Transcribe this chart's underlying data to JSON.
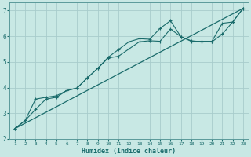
{
  "xlabel": "Humidex (Indice chaleur)",
  "bg_color": "#c8e8e4",
  "grid_color": "#a8cccc",
  "line_color": "#1a6b6b",
  "xlim": [
    0.5,
    23.5
  ],
  "ylim": [
    2.0,
    7.3
  ],
  "xticks": [
    1,
    2,
    3,
    4,
    5,
    6,
    7,
    8,
    9,
    10,
    11,
    12,
    13,
    14,
    15,
    16,
    17,
    18,
    19,
    20,
    21,
    22,
    23
  ],
  "yticks": [
    2,
    3,
    4,
    5,
    6,
    7
  ],
  "line1_x": [
    1,
    2,
    3,
    4,
    5,
    6,
    7,
    8,
    9,
    10,
    11,
    12,
    13,
    14,
    15,
    16,
    17,
    18,
    19,
    20,
    21,
    22,
    23
  ],
  "line1_y": [
    2.4,
    2.72,
    3.55,
    3.62,
    3.68,
    3.88,
    3.98,
    4.38,
    4.75,
    5.15,
    5.22,
    5.5,
    5.78,
    5.82,
    5.8,
    6.28,
    5.98,
    5.82,
    5.78,
    5.78,
    6.08,
    6.55,
    7.08
  ],
  "line2_x": [
    1,
    2,
    3,
    4,
    5,
    6,
    7,
    8,
    9,
    10,
    11,
    12,
    13,
    14,
    15,
    16,
    17,
    18,
    19,
    20,
    21,
    22,
    23
  ],
  "line2_y": [
    2.4,
    2.72,
    3.15,
    3.55,
    3.62,
    3.88,
    3.98,
    4.38,
    4.75,
    5.18,
    5.48,
    5.78,
    5.9,
    5.88,
    6.3,
    6.6,
    5.98,
    5.8,
    5.8,
    5.8,
    6.5,
    6.55,
    7.08
  ],
  "line3_x": [
    1,
    23
  ],
  "line3_y": [
    2.4,
    7.08
  ],
  "start_x": 1,
  "start_y": 3.35
}
